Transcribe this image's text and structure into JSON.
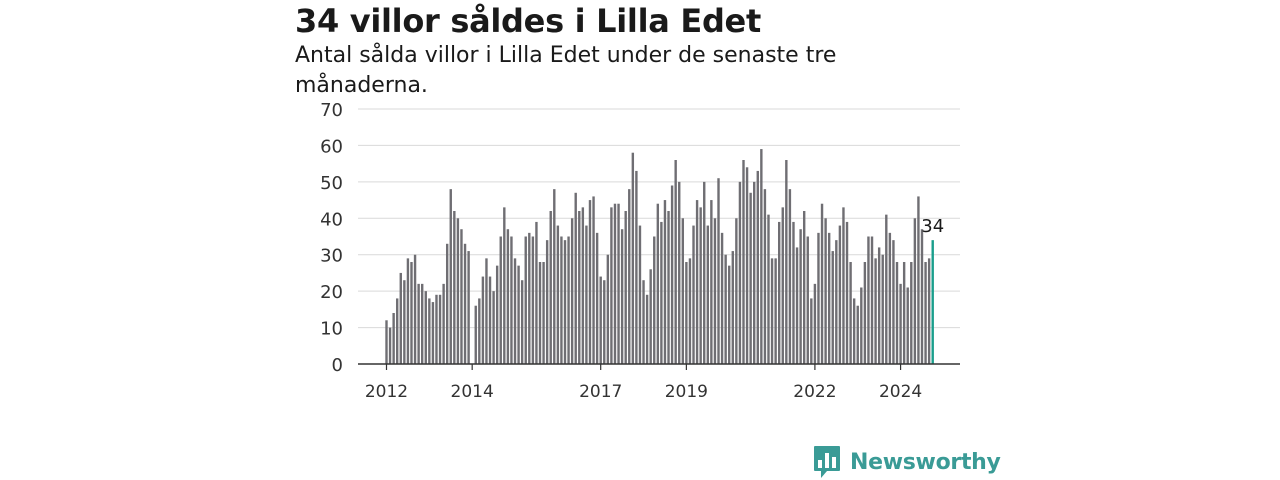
{
  "title": "34 villor såldes i Lilla Edet",
  "subtitle": "Antal sålda villor i Lilla Edet under de senaste tre månaderna.",
  "brand": {
    "name": "Newsworthy",
    "color": "#3a9b96"
  },
  "colors": {
    "bar": "#6f6e73",
    "highlight": "#1a9e8c",
    "grid": "#d9d9d9",
    "axis": "#333333"
  },
  "chart_data": {
    "type": "bar",
    "ylim": [
      0,
      70
    ],
    "yticks": [
      0,
      10,
      20,
      30,
      40,
      50,
      60,
      70
    ],
    "grid": true,
    "xticks": [
      {
        "label": "2012",
        "index": 0
      },
      {
        "label": "2014",
        "index": 24
      },
      {
        "label": "2017",
        "index": 60
      },
      {
        "label": "2019",
        "index": 84
      },
      {
        "label": "2022",
        "index": 120
      },
      {
        "label": "2024",
        "index": 144
      }
    ],
    "values": [
      12,
      10,
      14,
      18,
      25,
      23,
      29,
      28,
      30,
      22,
      22,
      20,
      18,
      17,
      19,
      19,
      22,
      33,
      48,
      42,
      40,
      37,
      33,
      31,
      0,
      16,
      18,
      24,
      29,
      24,
      20,
      27,
      35,
      43,
      37,
      35,
      29,
      27,
      23,
      35,
      36,
      35,
      39,
      28,
      28,
      34,
      42,
      48,
      38,
      35,
      34,
      35,
      40,
      47,
      42,
      43,
      38,
      45,
      46,
      36,
      24,
      23,
      30,
      43,
      44,
      44,
      37,
      42,
      48,
      58,
      53,
      38,
      23,
      19,
      26,
      35,
      44,
      39,
      45,
      42,
      49,
      56,
      50,
      40,
      28,
      29,
      38,
      45,
      43,
      50,
      38,
      45,
      40,
      51,
      36,
      30,
      27,
      31,
      40,
      50,
      56,
      54,
      47,
      50,
      53,
      59,
      48,
      41,
      29,
      29,
      39,
      43,
      56,
      48,
      39,
      32,
      37,
      42,
      35,
      18,
      22,
      36,
      44,
      40,
      36,
      31,
      34,
      38,
      43,
      39,
      28,
      18,
      16,
      21,
      28,
      35,
      35,
      29,
      32,
      30,
      41,
      36,
      34,
      28,
      22,
      28,
      21,
      28,
      40,
      46,
      37,
      28,
      29,
      34
    ],
    "highlight_index": 153,
    "highlight_label": "34"
  }
}
